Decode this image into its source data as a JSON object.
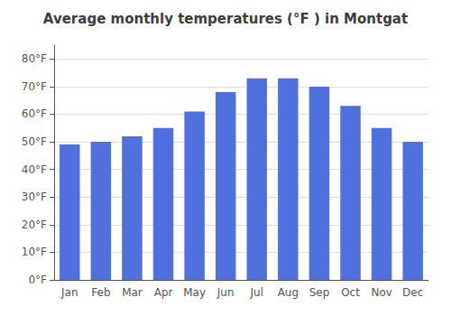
{
  "chart_data": {
    "type": "bar",
    "title": "Average monthly temperatures (°F ) in Montgat",
    "categories": [
      "Jan",
      "Feb",
      "Mar",
      "Apr",
      "May",
      "Jun",
      "Jul",
      "Aug",
      "Sep",
      "Oct",
      "Nov",
      "Dec"
    ],
    "values": [
      49,
      50,
      52,
      55,
      61,
      68,
      73,
      73,
      70,
      63,
      55,
      50
    ],
    "ylim": [
      0,
      85
    ],
    "yticks": [
      {
        "value": 0,
        "label": "0°F"
      },
      {
        "value": 10,
        "label": "10°F"
      },
      {
        "value": 20,
        "label": "20°F"
      },
      {
        "value": 30,
        "label": "30°F"
      },
      {
        "value": 40,
        "label": "40°F"
      },
      {
        "value": 50,
        "label": "50°F"
      },
      {
        "value": 60,
        "label": "60°F"
      },
      {
        "value": 70,
        "label": "70°F"
      },
      {
        "value": 80,
        "label": "80°F"
      }
    ],
    "grid": true
  }
}
